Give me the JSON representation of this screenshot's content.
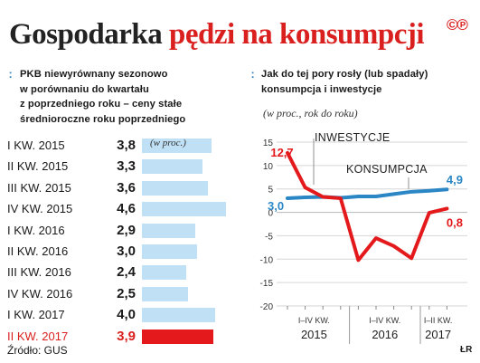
{
  "header": {
    "title_part1": "Gospodarka",
    "title_part2": "pędzi na konsumpcji",
    "copyright_mark": "©℗",
    "colors": {
      "title_dark": "#222222",
      "title_red": "#d9201f"
    }
  },
  "left_panel": {
    "marker": ":",
    "title_lines": [
      "PKB niewyrównany sezonowo",
      "w porównaniu do kwartału",
      "z poprzedniego roku – ceny stałe",
      "średnioroczne roku poprzedniego"
    ],
    "unit_note": "(w proc.)"
  },
  "right_panel": {
    "marker": ":",
    "title_lines": [
      "Jak do tej pory rosły (lub spadały)",
      "konsumpcja i inwestycje"
    ],
    "unit_note": "(w proc., rok do roku)"
  },
  "chart_data": [
    {
      "type": "bar",
      "orientation": "horizontal",
      "categories": [
        "I KW. 2015",
        "II KW. 2015",
        "III KW. 2015",
        "IV KW. 2015",
        "I KW. 2016",
        "II KW. 2016",
        "III KW. 2016",
        "IV KW. 2016",
        "I KW. 2017",
        "II KW. 2017"
      ],
      "values": [
        3.8,
        3.3,
        3.6,
        4.6,
        2.9,
        3.0,
        2.4,
        2.5,
        4.0,
        3.9
      ],
      "value_labels": [
        "3,8",
        "3,3",
        "3,6",
        "4,6",
        "2,9",
        "3,0",
        "2,4",
        "2,5",
        "4,0",
        "3,9"
      ],
      "highlight_index": 9,
      "colors": {
        "bar": "#bfe0f5",
        "highlight": "#e3191c"
      },
      "xlim": [
        0,
        4.6
      ]
    },
    {
      "type": "line",
      "x": [
        "I KW. 2015",
        "II KW. 2015",
        "III KW. 2015",
        "IV KW. 2015",
        "I KW. 2016",
        "II KW. 2016",
        "III KW. 2016",
        "IV KW. 2016",
        "I KW. 2017",
        "II KW. 2017"
      ],
      "series": [
        {
          "name": "INWESTYCJE",
          "values": [
            12.7,
            5.3,
            3.3,
            3.0,
            -10.2,
            -5.5,
            -7.2,
            -9.8,
            -0.1,
            0.8
          ],
          "color": "#e3191c",
          "first_label": "12,7",
          "last_label": "0,8"
        },
        {
          "name": "KONSUMPCJA",
          "values": [
            3.0,
            3.2,
            3.3,
            3.1,
            3.4,
            3.4,
            3.9,
            4.4,
            4.6,
            4.9
          ],
          "color": "#2b86c5",
          "first_label": "3,0",
          "last_label": "4,9"
        }
      ],
      "ylim": [
        -20,
        15
      ],
      "yticks": [
        15,
        10,
        5,
        0,
        -5,
        -10,
        -15,
        -20
      ],
      "ytick_labels": [
        "15",
        "10",
        "5",
        "0",
        "-5",
        "-10",
        "-15",
        "-20"
      ],
      "xtick_groups": [
        {
          "quarters": "I–IV KW.",
          "year": "2015"
        },
        {
          "quarters": "I–IV KW.",
          "year": "2016"
        },
        {
          "quarters": "I–II KW.",
          "year": "2017"
        }
      ],
      "grid": true
    }
  ],
  "footer": {
    "source": "Źródło: GUS",
    "credit": "ŁR"
  }
}
